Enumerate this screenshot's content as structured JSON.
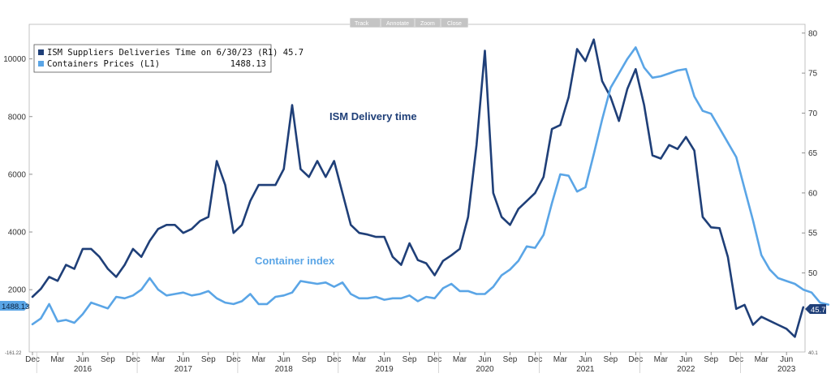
{
  "chart_data": {
    "type": "line",
    "toolbar": [
      "Track",
      "Annotate",
      "Zoom",
      "Close"
    ],
    "legend": [
      {
        "label": "ISM Suppliers Deliveries Time on 6/30/23 (R1) 45.7",
        "value": "",
        "color": "#1f3f78"
      },
      {
        "label": "Containers Prices (L1)",
        "value": "1488.13",
        "color": "#5aa5e6"
      }
    ],
    "annotations": [
      {
        "text": "ISM Delivery time",
        "series": "ISM"
      },
      {
        "text": "Container index",
        "series": "Containers"
      }
    ],
    "left_axis": {
      "ticks": [
        "10000",
        "8000",
        "6000",
        "4000",
        "2000"
      ],
      "ylim": [
        -161.22,
        11200
      ],
      "bottom_label": "-161.22"
    },
    "right_axis": {
      "ticks": [
        "80",
        "75",
        "70",
        "65",
        "60",
        "55",
        "50"
      ],
      "ylim": [
        40.1,
        81.1
      ],
      "bottom_label": "40.1"
    },
    "value_tags": {
      "left": "1488.13",
      "right": "45.7"
    },
    "x_month_labels": [
      "Dec",
      "Mar",
      "Jun",
      "Sep",
      "Dec",
      "Mar",
      "Jun",
      "Sep",
      "Dec",
      "Mar",
      "Jun",
      "Sep",
      "Dec",
      "Mar",
      "Jun",
      "Sep",
      "Dec",
      "Mar",
      "Jun",
      "Sep",
      "Dec",
      "Mar",
      "Jun",
      "Sep",
      "Dec",
      "Mar",
      "Jun",
      "Sep",
      "Dec",
      "Mar",
      "Jun"
    ],
    "x_year_labels": [
      "2016",
      "2017",
      "2018",
      "2019",
      "2020",
      "2021",
      "2022",
      "2023"
    ],
    "x_start": "2015-12",
    "series": [
      {
        "name": "ISM Suppliers Deliveries Time",
        "axis": "right",
        "color": "#1f3f78",
        "values": [
          47,
          48,
          49.5,
          49,
          51,
          50.5,
          53,
          53,
          52,
          50.5,
          49.5,
          51,
          53,
          52,
          54,
          55.5,
          56,
          56,
          55,
          55.5,
          56.5,
          57,
          64,
          61,
          55,
          56,
          59,
          61,
          61,
          61,
          63,
          71,
          63,
          62,
          64,
          62,
          64,
          60,
          56,
          55,
          54.8,
          54.5,
          54.5,
          52,
          51,
          53.7,
          51.6,
          51.2,
          49.7,
          51.5,
          52.2,
          53,
          57,
          66,
          77.8,
          60,
          57,
          56,
          58,
          59,
          60,
          62,
          68,
          68.5,
          72,
          78,
          76.5,
          79.2,
          74,
          72,
          69,
          73,
          75.5,
          71,
          64.7,
          64.3,
          66,
          65.5,
          67,
          65.3,
          57,
          55.7,
          55.6,
          52,
          45.5,
          46,
          43.5,
          44.5,
          44,
          43.5,
          43,
          42,
          45.7
        ]
      },
      {
        "name": "Containers Prices",
        "axis": "left",
        "color": "#5aa5e6",
        "values": [
          800,
          1000,
          1500,
          900,
          950,
          850,
          1150,
          1550,
          1450,
          1350,
          1750,
          1700,
          1800,
          2000,
          2400,
          2000,
          1800,
          1850,
          1900,
          1800,
          1850,
          1950,
          1700,
          1550,
          1500,
          1600,
          1850,
          1500,
          1500,
          1750,
          1800,
          1900,
          2300,
          2250,
          2200,
          2250,
          2100,
          2250,
          1850,
          1700,
          1700,
          1750,
          1650,
          1700,
          1700,
          1800,
          1600,
          1750,
          1700,
          2050,
          2200,
          1950,
          1950,
          1850,
          1850,
          2100,
          2500,
          2700,
          3000,
          3500,
          3450,
          3900,
          5000,
          6000,
          5950,
          5400,
          5550,
          6700,
          7900,
          9000,
          9500,
          10000,
          10400,
          9700,
          9350,
          9400,
          9500,
          9600,
          9650,
          8700,
          8200,
          8100,
          7600,
          7100,
          6600,
          5500,
          4400,
          3200,
          2700,
          2400,
          2300,
          2200,
          2000,
          1900,
          1550,
          1480
        ]
      }
    ]
  }
}
